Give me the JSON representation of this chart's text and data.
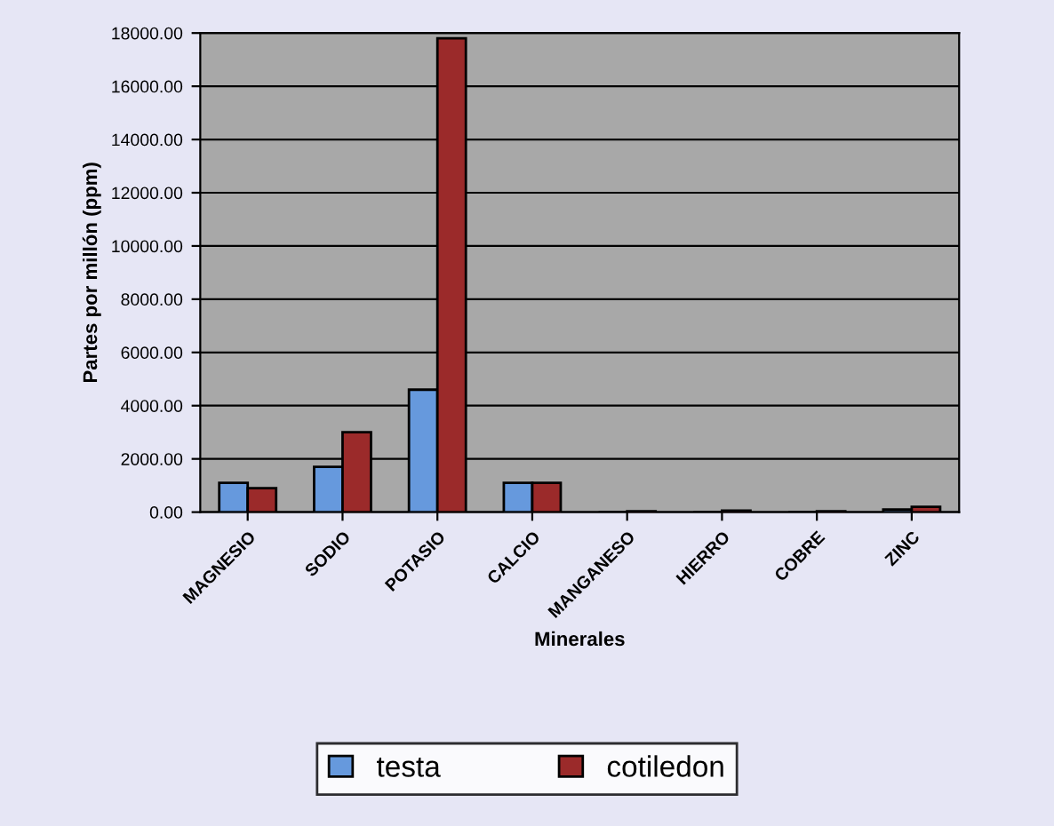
{
  "chart_data": {
    "type": "bar",
    "xlabel": "Minerales",
    "ylabel": "Partes por millón (ppm)",
    "categories": [
      "MAGNESIO",
      "SODIO",
      "POTASIO",
      "CALCIO",
      "MANGANESO",
      "HIERRO",
      "COBRE",
      "ZINC"
    ],
    "series": [
      {
        "name": "testa",
        "color": "#6699dd",
        "values": [
          1100,
          1700,
          4600,
          1100,
          null,
          null,
          null,
          100
        ]
      },
      {
        "name": "cotiledon",
        "color": "#9b2a2a",
        "values": [
          900,
          3000,
          17800,
          1100,
          30,
          60,
          30,
          200
        ]
      }
    ],
    "ylim": [
      0,
      18000
    ],
    "yticks": [
      {
        "value": 0,
        "label": "0.00"
      },
      {
        "value": 2000,
        "label": "2000.00"
      },
      {
        "value": 4000,
        "label": "4000.00"
      },
      {
        "value": 6000,
        "label": "6000.00"
      },
      {
        "value": 8000,
        "label": "8000.00"
      },
      {
        "value": 10000,
        "label": "10000.00"
      },
      {
        "value": 12000,
        "label": "12000.00"
      },
      {
        "value": 14000,
        "label": "14000.00"
      },
      {
        "value": 16000,
        "label": "16000.00"
      },
      {
        "value": 18000,
        "label": "18000.00"
      }
    ],
    "grid": "y",
    "legend": "bottom"
  }
}
